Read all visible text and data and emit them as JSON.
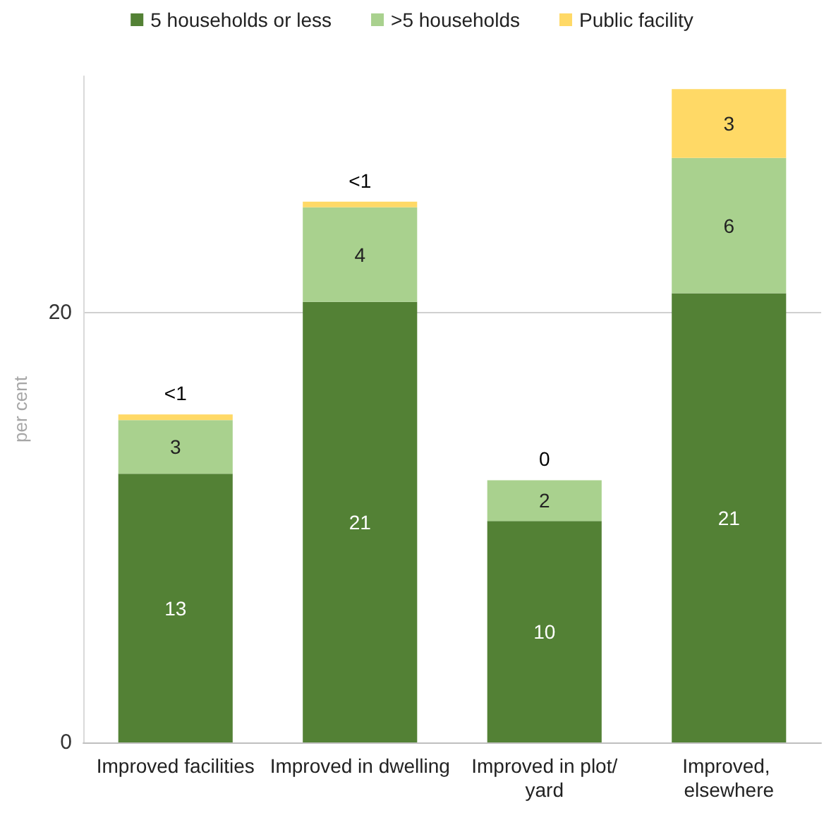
{
  "chart_data": {
    "type": "bar",
    "stacked": true,
    "ylabel": "per cent",
    "categories": [
      "Improved facilities",
      "Improved in dwelling",
      "Improved in plot/yard",
      "Improved, elsewhere"
    ],
    "series": [
      {
        "name": "5 households or less",
        "color": "#538135",
        "values": [
          12.5,
          20.5,
          10.3,
          20.9
        ],
        "value_labels": [
          "13",
          "21",
          "10",
          "21"
        ]
      },
      {
        "name": ">5 households",
        "color": "#a9d18e",
        "values": [
          2.5,
          4.4,
          1.9,
          6.3
        ],
        "value_labels": [
          "3",
          "4",
          "2",
          "6"
        ]
      },
      {
        "name": "Public facility",
        "color": "#ffd966",
        "values": [
          0.26,
          0.26,
          0,
          3.2
        ],
        "value_labels": [
          "<1",
          "<1",
          "0",
          "3"
        ]
      }
    ],
    "ylim": [
      0,
      31
    ],
    "yticks": [
      0,
      20
    ],
    "grid": "y",
    "legend": "top"
  }
}
